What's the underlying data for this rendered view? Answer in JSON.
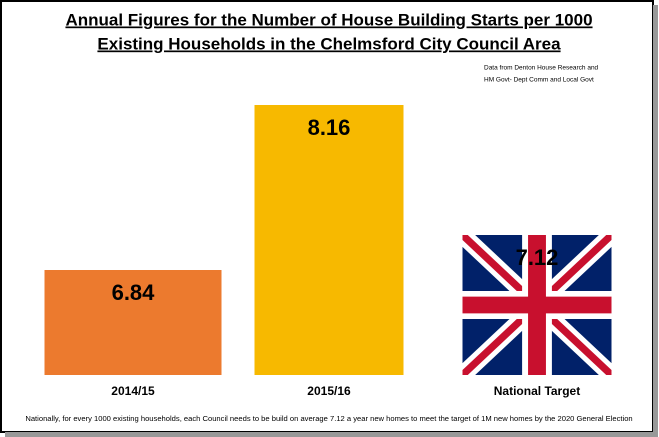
{
  "chart_data": {
    "type": "bar",
    "title": [
      "Annual Figures for the Number of House Building Starts per 1000",
      "Existing Households in the Chelmsford City Council Area"
    ],
    "source": [
      "Data from Denton House Research and",
      "HM Govt- Dept Comm and Local Govt"
    ],
    "categories": [
      "2014/15",
      "2015/16",
      "National Target"
    ],
    "values": [
      6.84,
      8.16,
      7.12
    ],
    "colors": [
      "#ec7a2e",
      "#f7b900",
      "url(#flag)"
    ],
    "ylim": [
      6,
      8.4
    ],
    "footnote": "Nationally, for every 1000  existing households, each Council needs to be build on average 7.12 a year new homes to meet the target of 1M new homes by the 2020 General Election"
  }
}
